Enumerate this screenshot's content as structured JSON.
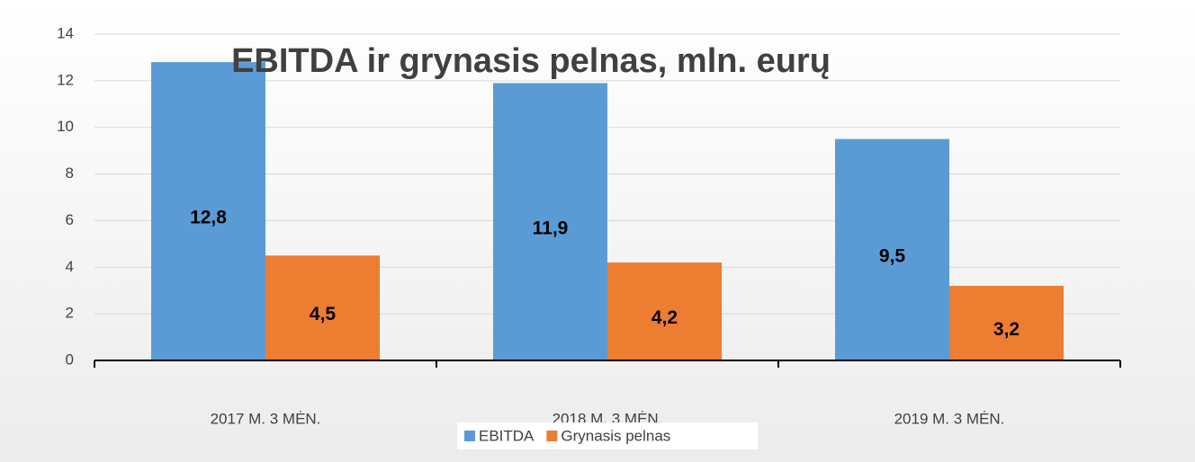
{
  "chart_data": {
    "type": "bar",
    "title": "EBITDA ir grynasis pelnas, mln. eurų",
    "categories": [
      "2017 M. 3 MĖN.",
      "2018 M. 3 MĖN.",
      "2019 M. 3 MĖN."
    ],
    "series": [
      {
        "name": "EBITDA",
        "color": "#5b9bd5",
        "values": [
          12.8,
          11.9,
          9.5
        ],
        "value_labels": [
          "12,8",
          "11,9",
          "9,5"
        ]
      },
      {
        "name": "Grynasis pelnas",
        "color": "#ed7d31",
        "values": [
          4.5,
          4.2,
          3.2
        ],
        "value_labels": [
          "4,5",
          "4,2",
          "3,2"
        ]
      }
    ],
    "ylim": [
      0,
      14
    ],
    "yticks": [
      0,
      2,
      4,
      6,
      8,
      10,
      12,
      14
    ],
    "grid": true,
    "legend": "bottom"
  }
}
